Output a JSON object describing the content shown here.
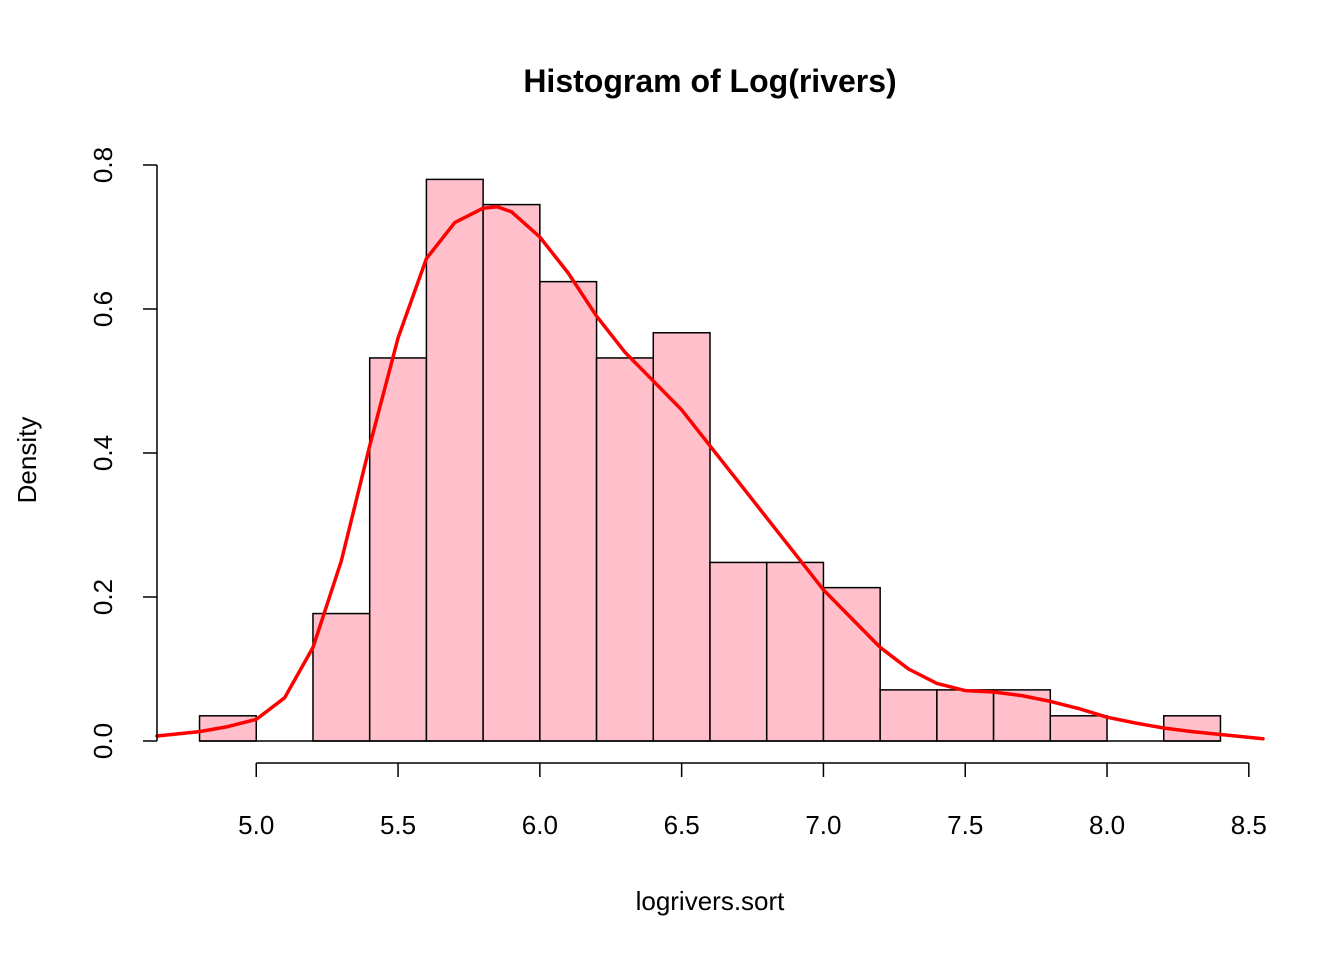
{
  "chart_data": {
    "type": "bar",
    "title": "Histogram of Log(rivers)",
    "xlabel": "logrivers.sort",
    "ylabel": "Density",
    "bin_edges": [
      4.8,
      5.0,
      5.2,
      5.4,
      5.6,
      5.8,
      6.0,
      6.2,
      6.4,
      6.6,
      6.8,
      7.0,
      7.2,
      7.4,
      7.6,
      7.8,
      8.0,
      8.2,
      8.4
    ],
    "values": [
      0.035,
      0.0,
      0.177,
      0.532,
      0.78,
      0.745,
      0.638,
      0.532,
      0.567,
      0.248,
      0.248,
      0.213,
      0.071,
      0.071,
      0.071,
      0.035,
      0.0,
      0.035
    ],
    "xlim": [
      4.65,
      8.55
    ],
    "ylim": [
      0,
      0.8
    ],
    "x_ticks": [
      "5.0",
      "5.5",
      "6.0",
      "6.5",
      "7.0",
      "7.5",
      "8.0",
      "8.5"
    ],
    "y_ticks": [
      "0.0",
      "0.2",
      "0.4",
      "0.6",
      "0.8"
    ],
    "bar_fill": "#FFC0CB",
    "bar_stroke": "#000000",
    "density_curve": {
      "color": "#FF0000",
      "x": [
        4.65,
        4.8,
        4.9,
        5.0,
        5.1,
        5.2,
        5.3,
        5.4,
        5.5,
        5.6,
        5.7,
        5.8,
        5.85,
        5.9,
        6.0,
        6.1,
        6.2,
        6.3,
        6.4,
        6.5,
        6.6,
        6.7,
        6.8,
        6.9,
        7.0,
        7.1,
        7.2,
        7.3,
        7.4,
        7.5,
        7.6,
        7.7,
        7.8,
        7.9,
        8.0,
        8.1,
        8.2,
        8.3,
        8.4,
        8.55
      ],
      "y": [
        0.007,
        0.013,
        0.02,
        0.03,
        0.06,
        0.13,
        0.25,
        0.41,
        0.56,
        0.67,
        0.72,
        0.74,
        0.742,
        0.735,
        0.7,
        0.65,
        0.59,
        0.54,
        0.5,
        0.46,
        0.41,
        0.36,
        0.31,
        0.26,
        0.21,
        0.17,
        0.13,
        0.1,
        0.08,
        0.07,
        0.068,
        0.063,
        0.055,
        0.045,
        0.033,
        0.025,
        0.018,
        0.013,
        0.009,
        0.003
      ]
    }
  }
}
